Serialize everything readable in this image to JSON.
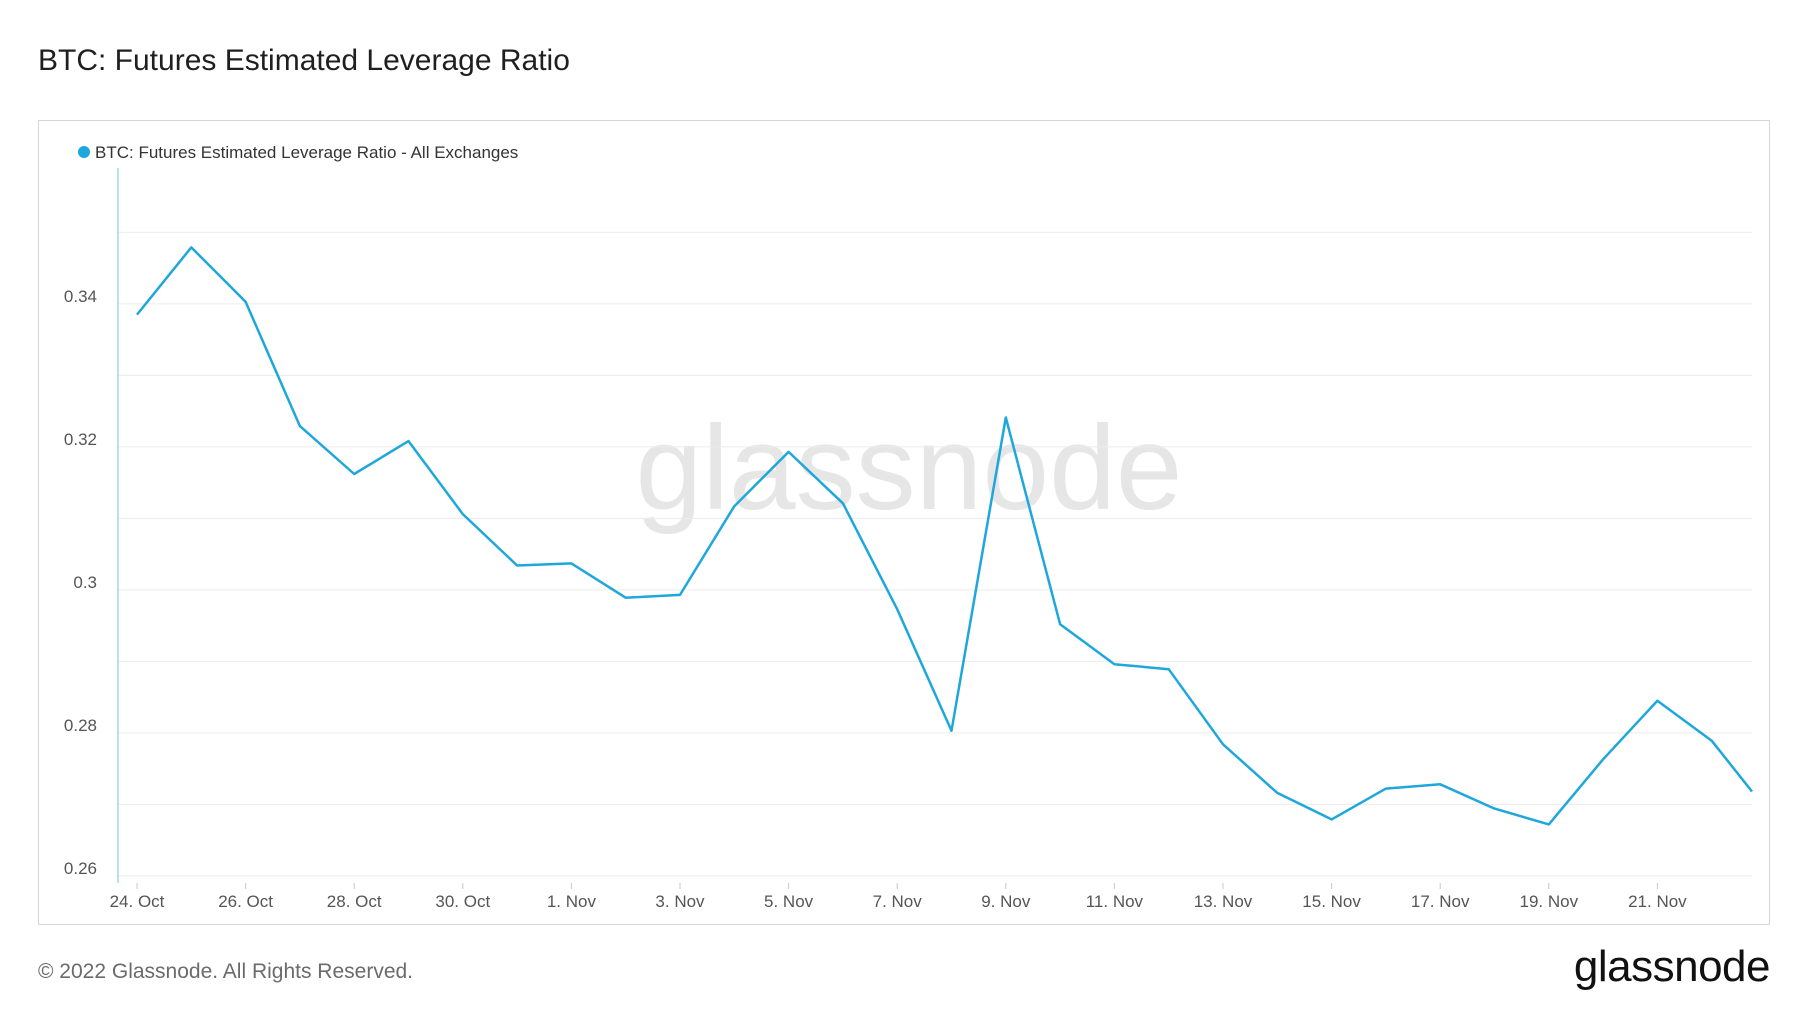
{
  "page": {
    "title": "BTC: Futures Estimated Leverage Ratio",
    "copyright": "© 2022 Glassnode. All Rights Reserved.",
    "logo_text": "glassnode",
    "watermark_text": "glassnode"
  },
  "colors": {
    "series": "#1ea7dc",
    "grid": "#ececec",
    "axis_text": "#555555",
    "watermark": "#e6e6e6"
  },
  "chart_data": {
    "type": "line",
    "title": "BTC: Futures Estimated Leverage Ratio",
    "xlabel": "",
    "ylabel": "",
    "legend_position": "top-left",
    "grid": true,
    "ylim": [
      0.259,
      0.359
    ],
    "yticks": [
      0.26,
      0.28,
      0.3,
      0.32,
      0.34
    ],
    "ytick_labels": [
      "0.26",
      "0.28",
      "0.3",
      "0.32",
      "0.34"
    ],
    "xtick_labels": [
      "24. Oct",
      "26. Oct",
      "28. Oct",
      "30. Oct",
      "1. Nov",
      "3. Nov",
      "5. Nov",
      "7. Nov",
      "9. Nov",
      "11. Nov",
      "13. Nov",
      "15. Nov",
      "17. Nov",
      "19. Nov",
      "21. Nov"
    ],
    "x": [
      "2022-10-24",
      "2022-10-25",
      "2022-10-26",
      "2022-10-27",
      "2022-10-28",
      "2022-10-29",
      "2022-10-30",
      "2022-10-31",
      "2022-11-01",
      "2022-11-02",
      "2022-11-03",
      "2022-11-04",
      "2022-11-05",
      "2022-11-06",
      "2022-11-07",
      "2022-11-08",
      "2022-11-09",
      "2022-11-10",
      "2022-11-11",
      "2022-11-12",
      "2022-11-13",
      "2022-11-14",
      "2022-11-15",
      "2022-11-16",
      "2022-11-17",
      "2022-11-18",
      "2022-11-19",
      "2022-11-20",
      "2022-11-21",
      "2022-11-22",
      "2022-11-23"
    ],
    "series": [
      {
        "name": "BTC: Futures Estimated Leverage Ratio - All Exchanges",
        "values": [
          0.3385,
          0.3479,
          0.3403,
          0.3229,
          0.3162,
          0.3208,
          0.3106,
          0.3034,
          0.3037,
          0.2989,
          0.2993,
          0.3117,
          0.3193,
          0.3121,
          0.2973,
          0.2803,
          0.3241,
          0.2952,
          0.2896,
          0.2889,
          0.2784,
          0.2716,
          0.2679,
          0.2722,
          0.2728,
          0.2694,
          0.2672,
          0.2763,
          0.2845,
          0.2789,
          0.2718
        ]
      }
    ]
  }
}
